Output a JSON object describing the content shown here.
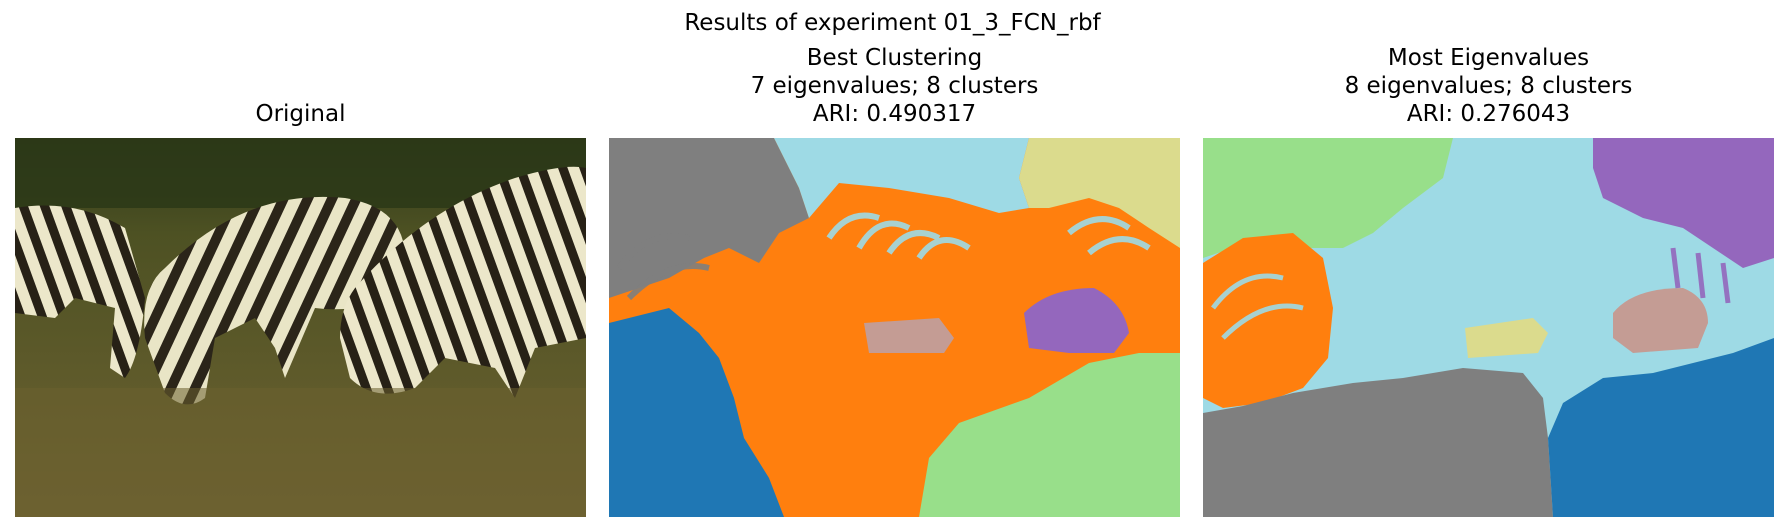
{
  "figure": {
    "suptitle": "Results of experiment 01_3_FCN_rbf"
  },
  "panels": [
    {
      "title_lines": [
        "Original"
      ],
      "image": "zebra-photo"
    },
    {
      "title_lines": [
        "Best Clustering",
        "7 eigenvalues; 8 clusters",
        "ARI: 0.490317"
      ],
      "image": "segmentation-map"
    },
    {
      "title_lines": [
        "Most Eigenvalues",
        "8 eigenvalues; 8 clusters",
        "ARI: 0.276043"
      ],
      "image": "segmentation-map"
    }
  ],
  "colors": {
    "blue": "#1f77b4",
    "orange": "#ff7f0e",
    "light_green": "#98df8a",
    "purple": "#9467bd",
    "rose": "#c49c94",
    "gray": "#7f7f7f",
    "khaki": "#dbdb8d",
    "light_cyan": "#9edae5",
    "grass": "#5e5a2a",
    "zebra_light": "#e7e2c2",
    "zebra_dark": "#2b2519"
  }
}
